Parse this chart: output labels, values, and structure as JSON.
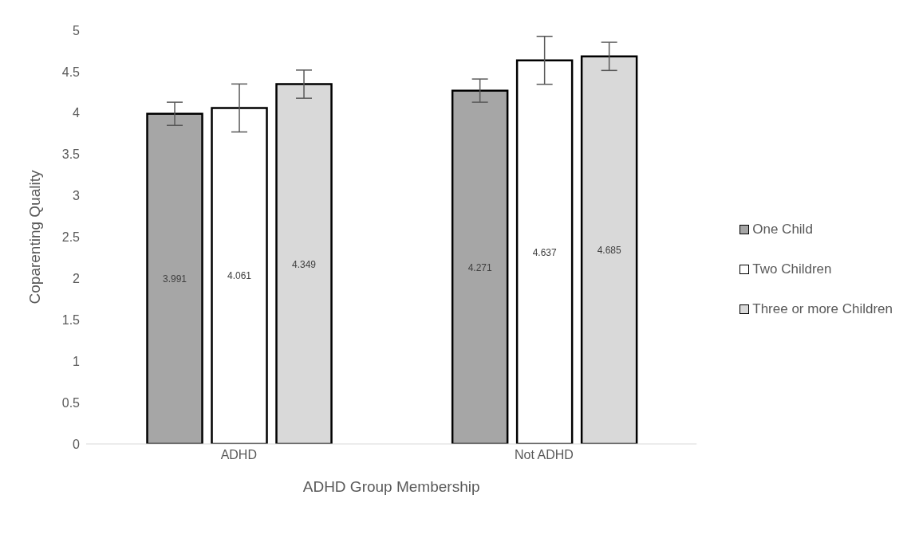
{
  "chart_data": {
    "type": "bar",
    "xlabel": "ADHD Group Membership",
    "ylabel": "Coparenting Quality",
    "categories": [
      "ADHD",
      "Not ADHD"
    ],
    "series": [
      {
        "name": "One Child",
        "color": "#a6a6a6",
        "values": [
          3.991,
          4.271
        ],
        "errors": [
          0.14,
          0.14
        ]
      },
      {
        "name": "Two Children",
        "color": "#ffffff",
        "values": [
          4.061,
          4.637
        ],
        "errors": [
          0.29,
          0.29
        ]
      },
      {
        "name": "Three or more Children",
        "color": "#d9d9d9",
        "values": [
          4.349,
          4.685
        ],
        "errors": [
          0.17,
          0.17
        ]
      }
    ],
    "ylim": [
      0,
      5
    ],
    "yticks": [
      0,
      0.5,
      1,
      1.5,
      2,
      2.5,
      3,
      3.5,
      4,
      4.5,
      5
    ],
    "grid": false,
    "legend": "right",
    "data_labels": true
  }
}
